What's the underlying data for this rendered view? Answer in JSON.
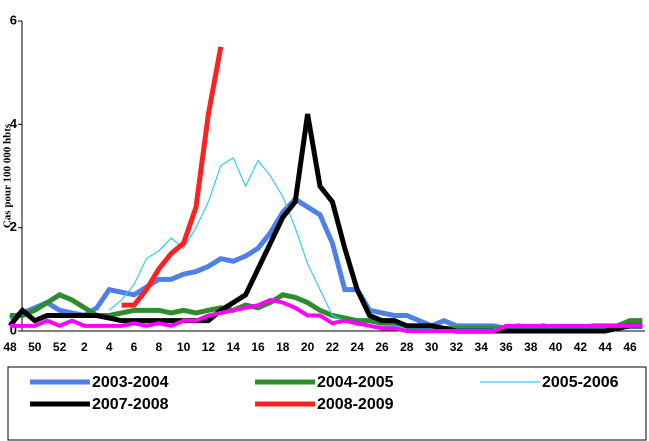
{
  "chart_data": {
    "type": "line",
    "y_label": "Cas pour 100 000 hbts",
    "categories": [
      "48",
      null,
      "50",
      null,
      "52",
      null,
      "2",
      null,
      "4",
      null,
      "6",
      null,
      "8",
      null,
      "10",
      null,
      "12",
      null,
      "14",
      null,
      "16",
      null,
      "18",
      null,
      "20",
      null,
      "22",
      null,
      "24",
      null,
      "26",
      null,
      "28",
      null,
      "30",
      null,
      "32",
      null,
      "34",
      null,
      "36",
      null,
      "38",
      null,
      "40",
      null,
      "42",
      null,
      "44",
      null,
      "46",
      null
    ],
    "ylim": [
      0,
      6
    ],
    "yticks": [
      0,
      2,
      4,
      6
    ],
    "series": [
      {
        "name": "2003-2004",
        "color": "#4f7fe8",
        "values": [
          0.25,
          0.35,
          0.45,
          0.55,
          0.4,
          0.35,
          0.3,
          0.45,
          0.8,
          0.75,
          0.7,
          0.85,
          1.0,
          1.0,
          1.1,
          1.15,
          1.25,
          1.4,
          1.35,
          1.45,
          1.6,
          1.9,
          2.3,
          2.55,
          2.4,
          2.25,
          1.7,
          0.8,
          0.8,
          0.4,
          0.35,
          0.3,
          0.3,
          0.2,
          0.1,
          0.2,
          0.1,
          0.1,
          0.1,
          0.1,
          0.05,
          0.1,
          0.05,
          0.05,
          0.05,
          0.05,
          0.05,
          0.05,
          0.05,
          0.1,
          0.1,
          0.1
        ]
      },
      {
        "name": "2004-2005",
        "color": "#2e8b2e",
        "values": [
          0.3,
          0.3,
          0.4,
          0.55,
          0.7,
          0.6,
          0.45,
          0.3,
          0.3,
          0.35,
          0.4,
          0.4,
          0.4,
          0.35,
          0.4,
          0.35,
          0.4,
          0.45,
          0.4,
          0.5,
          0.45,
          0.55,
          0.7,
          0.65,
          0.55,
          0.4,
          0.3,
          0.25,
          0.2,
          0.2,
          0.15,
          0.1,
          0.1,
          0.1,
          0.05,
          0.05,
          0.05,
          0.05,
          0.05,
          0.05,
          0.05,
          0.05,
          0.05,
          0.1,
          0.05,
          0.05,
          0.05,
          0.1,
          0.1,
          0.1,
          0.2,
          0.2
        ]
      },
      {
        "name": "2005-2006",
        "color": "#33ccee",
        "values": [
          null,
          null,
          null,
          null,
          null,
          null,
          null,
          null,
          0.4,
          0.6,
          0.9,
          1.4,
          1.55,
          1.8,
          1.6,
          2.0,
          2.5,
          3.2,
          3.35,
          2.8,
          3.3,
          3.0,
          2.6,
          2.0,
          1.3,
          0.8,
          0.3,
          0.2,
          0.1,
          0.1,
          0.1,
          0.1,
          0.05,
          0.05,
          0.05,
          0.05,
          0.05,
          0.05,
          0.05,
          0.05,
          0.05,
          0.05,
          0.05,
          0.05,
          0.05,
          0.05,
          0.05,
          0.05,
          0.05,
          0.05,
          0.05,
          0.05
        ]
      },
      {
        "name": "2007-2008",
        "color": "#000000",
        "values": [
          0.1,
          0.4,
          0.2,
          0.3,
          0.3,
          0.3,
          0.3,
          0.3,
          0.25,
          0.2,
          0.2,
          0.2,
          0.2,
          0.2,
          0.2,
          0.2,
          0.2,
          0.4,
          0.55,
          0.7,
          1.2,
          1.7,
          2.2,
          2.5,
          4.2,
          2.8,
          2.5,
          1.6,
          0.8,
          0.3,
          0.2,
          0.2,
          0.1,
          0.1,
          0.1,
          0.05,
          0,
          0,
          0,
          0,
          0,
          0,
          0,
          0,
          0,
          0,
          0,
          0,
          0,
          0.05,
          0.1,
          0.1
        ]
      },
      {
        "name": "2008-2009",
        "color": "#ff2020",
        "values": [
          null,
          null,
          null,
          null,
          null,
          null,
          null,
          null,
          null,
          0.5,
          0.5,
          0.8,
          1.2,
          1.5,
          1.7,
          2.4,
          4.2,
          5.5,
          null,
          null,
          null,
          null,
          null,
          null,
          null,
          null,
          null,
          null,
          null,
          null,
          null,
          null,
          null,
          null,
          null,
          null,
          null,
          null,
          null,
          null,
          null,
          null,
          null,
          null,
          null,
          null,
          null,
          null,
          null,
          null,
          null,
          null
        ]
      },
      {
        "color": "#ff00ff",
        "values": [
          0.1,
          0.1,
          0.1,
          0.2,
          0.1,
          0.2,
          0.1,
          0.1,
          0.1,
          0.1,
          0.15,
          0.1,
          0.15,
          0.1,
          0.2,
          0.2,
          0.3,
          0.35,
          0.4,
          0.45,
          0.5,
          0.6,
          0.55,
          0.45,
          0.3,
          0.3,
          0.15,
          0.2,
          0.15,
          0.1,
          0.05,
          0.05,
          0,
          0,
          0,
          0,
          0,
          0,
          0,
          0,
          0.1,
          0.1,
          0.1,
          0.1,
          0.1,
          0.1,
          0.1,
          0.1,
          0.1,
          0.1,
          0.1,
          0.1
        ]
      }
    ]
  }
}
